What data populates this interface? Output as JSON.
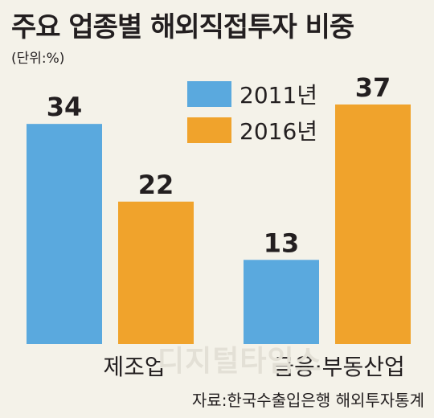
{
  "title": "주요 업종별 해외직접투자 비중",
  "unit": "(단위:%)",
  "watermark": "디지털타임스",
  "source": "자료:한국수출입은행 해외투자통계",
  "chart_data": {
    "type": "bar",
    "categories": [
      "제조업",
      "금융·부동산업"
    ],
    "series": [
      {
        "name": "2011년",
        "values": [
          34,
          13
        ],
        "color": "#5aa9de"
      },
      {
        "name": "2016년",
        "values": [
          22,
          37
        ],
        "color": "#f0a32c"
      }
    ],
    "ylim": [
      0,
      37
    ],
    "grid": false,
    "legend_position": "top-right"
  }
}
